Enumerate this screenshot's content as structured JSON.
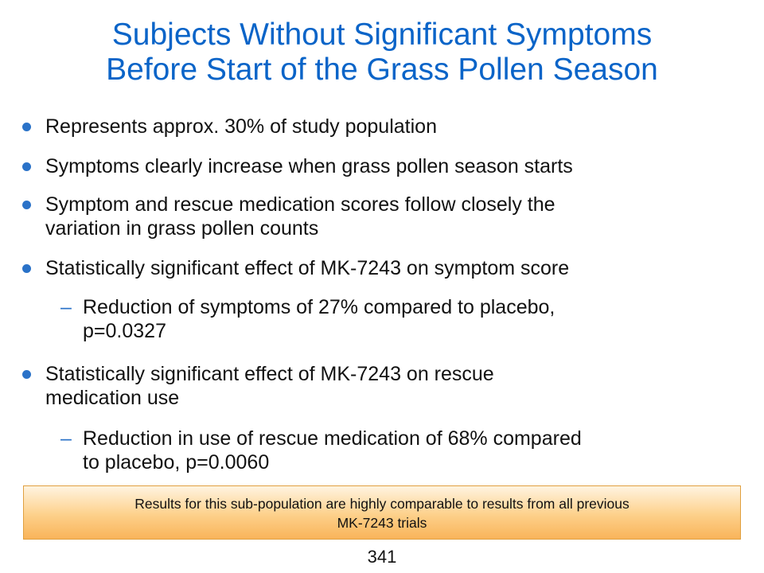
{
  "title": {
    "line1": "Subjects Without Significant Symptoms",
    "line2": "Before Start of the Grass Pollen Season"
  },
  "bullets": [
    {
      "lines": [
        "Represents approx. 30% of study population"
      ]
    },
    {
      "lines": [
        "Symptoms clearly increase when grass pollen season starts"
      ]
    },
    {
      "lines": [
        "Symptom and rescue medication scores follow closely the",
        "variation in grass pollen counts"
      ]
    },
    {
      "lines": [
        "Statistically significant effect of MK-7243 on symptom score"
      ]
    },
    {
      "sub": true,
      "marker": "–",
      "lines": [
        "Reduction of symptoms of 27% compared to placebo,",
        "p=0.0327"
      ]
    },
    {
      "lines": [
        "Statistically significant effect of MK-7243 on rescue",
        "medication use"
      ]
    },
    {
      "sub": true,
      "marker": "–",
      "lines": [
        "Reduction in use of rescue medication of 68% compared",
        "to placebo,  p=0.0060"
      ]
    }
  ],
  "callout": {
    "line1": "Results for this sub-population are highly comparable to results from all previous",
    "line2": "MK-7243 trials"
  },
  "page_number": "341",
  "colors": {
    "title": "#0a64c8",
    "bullet": "#2a72c8",
    "callout_top": "#fff4e0",
    "callout_bottom": "#f9b45a"
  }
}
